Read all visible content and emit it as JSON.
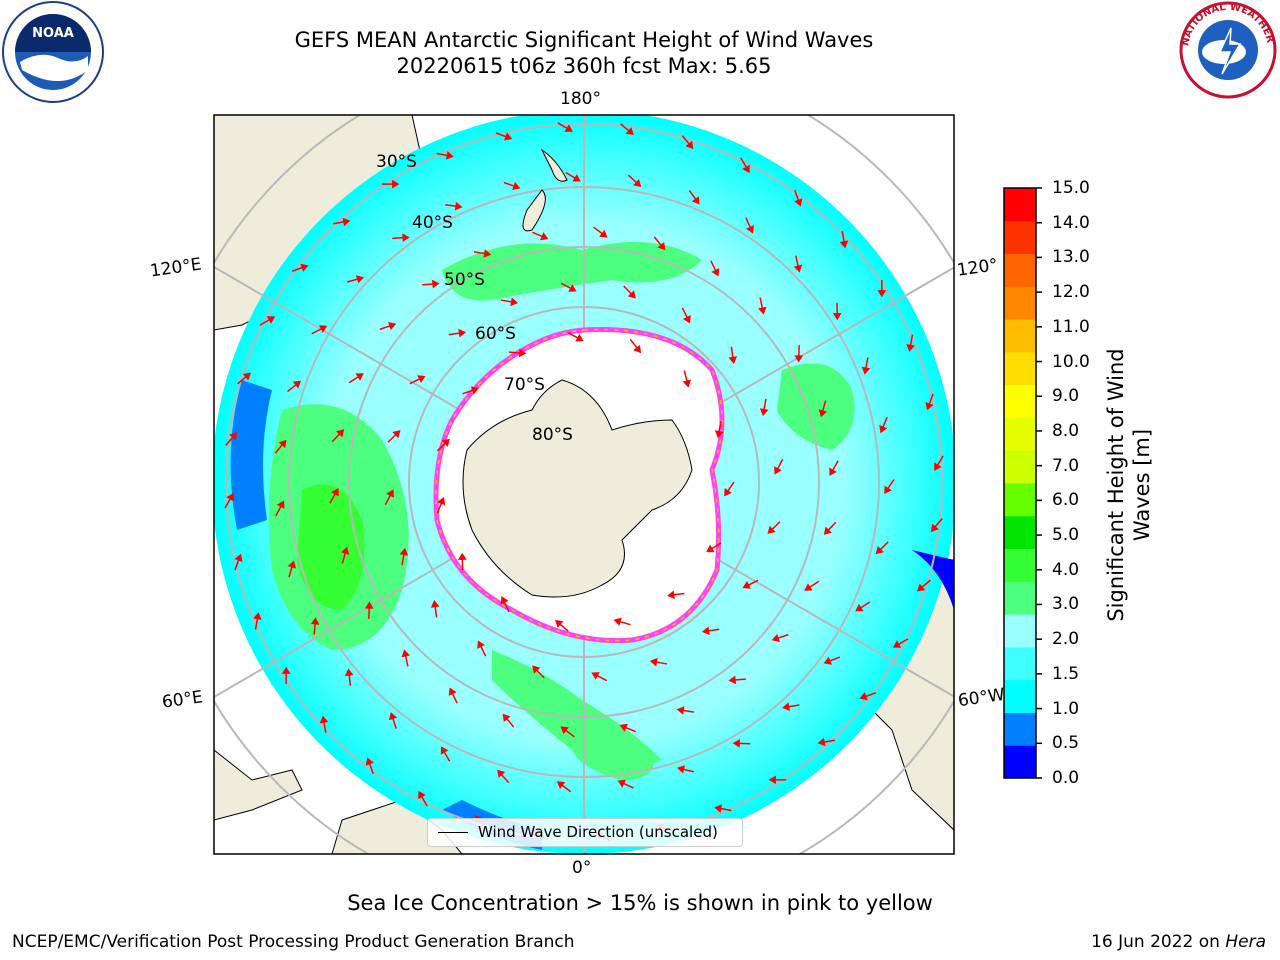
{
  "title_line1": "GEFS MEAN Antarctic Significant Height of Wind Waves",
  "title_line2": "20220615 t06z 360h fcst   Max: 5.65",
  "logos": {
    "left": "noaa-logo",
    "right": "national-weather-service-logo"
  },
  "map": {
    "projection": "south-polar-stereographic",
    "longitude_labels": {
      "top": "180°",
      "bottom": "0°",
      "upper_left": "120°E",
      "upper_right": "120°",
      "lower_left": "60°E",
      "lower_right": "60°W"
    },
    "latitude_labels": [
      "30°S",
      "40°S",
      "50°S",
      "60°S",
      "70°S",
      "80°S"
    ],
    "legend": "Wind Wave Direction (unscaled)",
    "colors": {
      "land": "#eeecdb",
      "ice": "#ffffff",
      "ice_edge": "#ff40ff",
      "arrows": "#ff0000",
      "grid": "#b8b8b8"
    }
  },
  "colorbar": {
    "label": "Significant Height of Wind Waves [m]",
    "ticks": [
      "15.0",
      "14.0",
      "13.0",
      "12.0",
      "11.0",
      "10.0",
      "9.0",
      "8.0",
      "7.0",
      "6.0",
      "5.0",
      "4.0",
      "3.0",
      "2.0",
      "1.5",
      "1.0",
      "0.5",
      "0.0"
    ],
    "colors": [
      "#0000ff",
      "#0080ff",
      "#00ffff",
      "#40ffff",
      "#99ffff",
      "#4cff7f",
      "#33ff33",
      "#00e600",
      "#66ff00",
      "#ccff00",
      "#e6ff00",
      "#ffff00",
      "#ffdd00",
      "#ffbb00",
      "#ff8800",
      "#ff6600",
      "#ff3300",
      "#ff0000"
    ]
  },
  "sea_ice_note": "Sea Ice Concentration > 15% is shown in pink to yellow",
  "footer": {
    "left": "NCEP/EMC/Verification Post Processing Product Generation Branch",
    "date": "16 Jun 2022 on ",
    "machine": "Hera"
  }
}
